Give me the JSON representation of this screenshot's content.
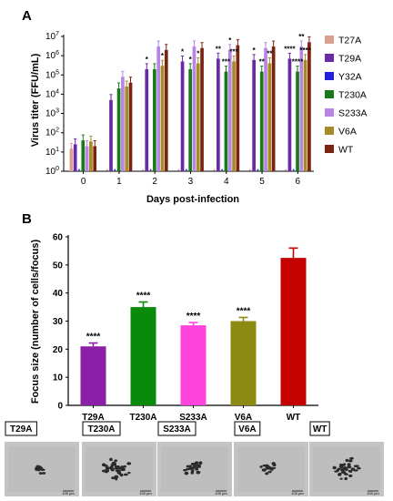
{
  "panel_a": {
    "letter": "A"
  },
  "panel_b": {
    "letter": "B"
  },
  "colors": {
    "T27A": "#d9a08f",
    "T29A": "#6a2aa8",
    "Y32A": "#1f1fe0",
    "T230A": "#1a7a1a",
    "S233A": "#b685e6",
    "V6A": "#a68a26",
    "WT": "#7a2410"
  },
  "chart_data": [
    {
      "type": "bar",
      "panel": "A",
      "ylabel": "Virus titer (FFU/mL)",
      "xlabel": "Days post-infection",
      "categories": [
        "0",
        "1",
        "2",
        "3",
        "4",
        "5",
        "6"
      ],
      "yscale": "log",
      "ylim": [
        1,
        10000000
      ],
      "yticks": [
        "10^0",
        "10^1",
        "10^2",
        "10^3",
        "10^4",
        "10^5",
        "10^6",
        "10^7"
      ],
      "legend": "right",
      "series": [
        {
          "name": "T27A",
          "values": [
            15,
            1,
            1,
            1,
            1,
            1,
            1
          ]
        },
        {
          "name": "T29A",
          "values": [
            25,
            5000,
            200000,
            500000,
            700000,
            600000,
            700000
          ]
        },
        {
          "name": "Y32A",
          "values": [
            1,
            1,
            1,
            1,
            1,
            1,
            1
          ]
        },
        {
          "name": "T230A",
          "values": [
            40,
            20000,
            200000,
            200000,
            150000,
            150000,
            150000
          ]
        },
        {
          "name": "S233A",
          "values": [
            20,
            80000,
            3000000,
            3000000,
            2000000,
            2500000,
            3000000
          ]
        },
        {
          "name": "V6A",
          "values": [
            35,
            25000,
            300000,
            400000,
            500000,
            400000,
            600000
          ]
        },
        {
          "name": "WT",
          "values": [
            20,
            40000,
            2000000,
            2500000,
            3500000,
            3000000,
            5000000
          ]
        }
      ],
      "annotations": [
        {
          "category": "2",
          "series": "T29A",
          "text": "*"
        },
        {
          "category": "2",
          "series": "V6A",
          "text": "*"
        },
        {
          "category": "3",
          "series": "T29A",
          "text": "*"
        },
        {
          "category": "3",
          "series": "T230A",
          "text": "*"
        },
        {
          "category": "3",
          "series": "V6A",
          "text": "*"
        },
        {
          "category": "4",
          "series": "T29A",
          "text": "**"
        },
        {
          "category": "4",
          "series": "T230A",
          "text": "***"
        },
        {
          "category": "4",
          "series": "S233A",
          "text": "*"
        },
        {
          "category": "4",
          "series": "V6A",
          "text": "***"
        },
        {
          "category": "5",
          "series": "T29A",
          "text": "*"
        },
        {
          "category": "5",
          "series": "T230A",
          "text": "**"
        },
        {
          "category": "5",
          "series": "V6A",
          "text": "**"
        },
        {
          "category": "6",
          "series": "T29A",
          "text": "****"
        },
        {
          "category": "6",
          "series": "T230A",
          "text": "****"
        },
        {
          "category": "6",
          "series": "S233A",
          "text": "**"
        },
        {
          "category": "6",
          "series": "V6A",
          "text": "****"
        }
      ]
    },
    {
      "type": "bar",
      "panel": "B",
      "ylabel": "Focus size (number of cells/focus)",
      "categories": [
        "T29A",
        "T230A",
        "S233A",
        "V6A",
        "WT"
      ],
      "values": [
        21,
        35,
        28.5,
        30,
        52.5
      ],
      "errors": [
        1.2,
        1.8,
        1,
        1.3,
        3.5
      ],
      "bar_colors": [
        "#8b1fa8",
        "#0a8a0a",
        "#ff44dd",
        "#8c8a12",
        "#c40000"
      ],
      "annotations": [
        "****",
        "****",
        "****",
        "****",
        ""
      ],
      "ylim": [
        0,
        60
      ],
      "yticks": [
        "0",
        "10",
        "20",
        "30",
        "40",
        "50",
        "60"
      ]
    }
  ],
  "micrographs": {
    "labels": [
      "T29A",
      "T230A",
      "S233A",
      "V6A",
      "WT"
    ],
    "scale_text": "100 µm"
  }
}
